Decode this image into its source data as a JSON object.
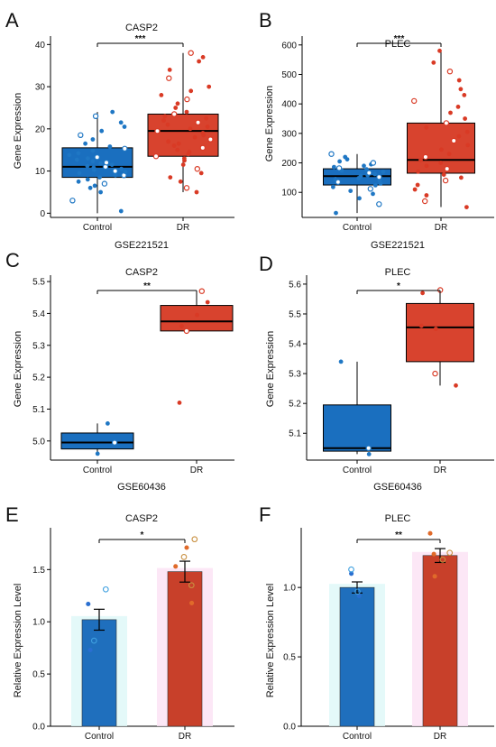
{
  "figure": {
    "panels": [
      {
        "letter": "A",
        "title": "CASP2",
        "ylabel": "Gene Expression",
        "dataset": "GSE221521"
      },
      {
        "letter": "B",
        "title": "PLEC",
        "ylabel": "Gene Expression",
        "dataset": "GSE221521"
      },
      {
        "letter": "C",
        "title": "CASP2",
        "ylabel": "Gene Expression",
        "dataset": "GSE60436"
      },
      {
        "letter": "D",
        "title": "PLEC",
        "ylabel": "Gene Expression",
        "dataset": "GSE60436"
      },
      {
        "letter": "E",
        "title": "CASP2",
        "ylabel": "Relative Expression Level",
        "dataset": ""
      },
      {
        "letter": "F",
        "title": "PLEC",
        "ylabel": "Relative Expression Level",
        "dataset": ""
      }
    ]
  },
  "colors": {
    "control": "#1f77c4",
    "control_box": "#1a6fbf",
    "dr": "#d93a25",
    "dr_box": "#d8432e",
    "bar_control_glow": "#dff8f8",
    "bar_dr_glow": "#fbe3f5",
    "bar_control": "#1f6fbd",
    "bar_dr": "#c8402a"
  },
  "chart_data": [
    {
      "type": "box",
      "title": "CASP2",
      "ylabel": "Gene Expression",
      "xlabel": "GSE221521",
      "categories": [
        "Control",
        "DR"
      ],
      "ylim": [
        -1,
        42
      ],
      "yticks": [
        0,
        10,
        20,
        30,
        40
      ],
      "ytick_labels": [
        "0",
        "10",
        "20",
        "30",
        "40"
      ],
      "boxes": [
        {
          "name": "Control",
          "q1": 8.5,
          "median": 11.0,
          "q3": 15.5,
          "whisker_low": 0.0,
          "whisker_high": 24.0
        },
        {
          "name": "DR",
          "q1": 13.5,
          "median": 19.5,
          "q3": 23.5,
          "whisker_low": 5.0,
          "whisker_high": 38.0
        }
      ],
      "points": [
        [
          0.5,
          3.0,
          5.0,
          6.0,
          6.5,
          7.0,
          7.5,
          8.0,
          8.5,
          9.0,
          9.0,
          9.5,
          9.8,
          10.0,
          10.3,
          10.5,
          10.8,
          11.0,
          11.2,
          11.5,
          11.8,
          12.0,
          12.3,
          12.7,
          13.0,
          13.3,
          13.8,
          14.2,
          14.8,
          15.3,
          15.8,
          16.5,
          17.5,
          18.5,
          19.5,
          20.5,
          21.5,
          23.0,
          24.0
        ],
        [
          5.0,
          6.0,
          7.5,
          8.5,
          9.5,
          10.5,
          11.5,
          12.5,
          13.0,
          13.5,
          14.0,
          14.5,
          15.0,
          15.5,
          16.0,
          16.5,
          17.0,
          17.5,
          18.0,
          18.5,
          19.0,
          19.5,
          20.0,
          20.5,
          21.0,
          21.5,
          22.0,
          22.5,
          23.0,
          23.5,
          24.0,
          25.0,
          26.0,
          27.0,
          28.0,
          29.0,
          30.0,
          32.0,
          34.0,
          36.0,
          37.0,
          38.0
        ]
      ],
      "significance": "***"
    },
    {
      "type": "box",
      "title": "PLEC",
      "ylabel": "Gene Expression",
      "xlabel": "GSE221521",
      "categories": [
        "Control",
        "DR"
      ],
      "ylim": [
        15,
        630
      ],
      "yticks": [
        100,
        200,
        300,
        400,
        500,
        600
      ],
      "ytick_labels": [
        "100",
        "200",
        "300",
        "400",
        "500",
        "600"
      ],
      "boxes": [
        {
          "name": "Control",
          "q1": 125,
          "median": 155,
          "q3": 180,
          "whisker_low": 30,
          "whisker_high": 230
        },
        {
          "name": "DR",
          "q1": 165,
          "median": 210,
          "q3": 335,
          "whisker_low": 50,
          "whisker_high": 580
        }
      ],
      "points": [
        [
          30,
          60,
          80,
          95,
          105,
          112,
          118,
          124,
          130,
          135,
          140,
          145,
          148,
          152,
          155,
          158,
          162,
          166,
          170,
          174,
          178,
          182,
          186,
          190,
          195,
          200,
          205,
          212,
          220,
          230
        ],
        [
          50,
          70,
          90,
          110,
          125,
          140,
          150,
          160,
          170,
          180,
          190,
          200,
          210,
          220,
          230,
          245,
          260,
          275,
          290,
          305,
          320,
          335,
          350,
          370,
          390,
          410,
          430,
          450,
          480,
          510,
          540,
          580
        ]
      ],
      "significance": "***"
    },
    {
      "type": "box",
      "title": "CASP2",
      "ylabel": "Gene Expression",
      "xlabel": "GSE60436",
      "categories": [
        "Control",
        "DR"
      ],
      "ylim": [
        4.94,
        5.52
      ],
      "yticks": [
        5.0,
        5.1,
        5.2,
        5.3,
        5.4,
        5.5
      ],
      "ytick_labels": [
        "5.0",
        "5.1",
        "5.2",
        "5.3",
        "5.4",
        "5.5"
      ],
      "boxes": [
        {
          "name": "Control",
          "q1": 4.975,
          "median": 4.995,
          "q3": 5.025,
          "whisker_low": 4.96,
          "whisker_high": 5.055
        },
        {
          "name": "DR",
          "q1": 5.345,
          "median": 5.375,
          "q3": 5.425,
          "whisker_low": 5.345,
          "whisker_high": 5.47
        }
      ],
      "points": [
        [
          4.96,
          4.995,
          5.055
        ],
        [
          5.12,
          5.345,
          5.36,
          5.395,
          5.435,
          5.47
        ]
      ],
      "significance": "**"
    },
    {
      "type": "box",
      "title": "PLEC",
      "ylabel": "Gene Expression",
      "xlabel": "GSE60436",
      "categories": [
        "Control",
        "DR"
      ],
      "ylim": [
        5.01,
        5.63
      ],
      "yticks": [
        5.1,
        5.2,
        5.3,
        5.4,
        5.5,
        5.6
      ],
      "ytick_labels": [
        "5.1",
        "5.2",
        "5.3",
        "5.4",
        "5.5",
        "5.6"
      ],
      "boxes": [
        {
          "name": "Control",
          "q1": 5.04,
          "median": 5.05,
          "q3": 5.195,
          "whisker_low": 5.03,
          "whisker_high": 5.34
        },
        {
          "name": "DR",
          "q1": 5.34,
          "median": 5.455,
          "q3": 5.535,
          "whisker_low": 5.26,
          "whisker_high": 5.58
        }
      ],
      "points": [
        [
          5.03,
          5.05,
          5.34
        ],
        [
          5.26,
          5.3,
          5.45,
          5.46,
          5.57,
          5.58
        ]
      ],
      "significance": "*"
    },
    {
      "type": "bar",
      "title": "CASP2",
      "ylabel": "Relative Expression Level",
      "categories": [
        "Control",
        "DR"
      ],
      "values": [
        1.02,
        1.48
      ],
      "errors": [
        0.1,
        0.1
      ],
      "ylim": [
        0,
        1.9
      ],
      "yticks": [
        0.0,
        0.5,
        1.0,
        1.5
      ],
      "ytick_labels": [
        "0.0",
        "0.5",
        "1.0",
        "1.5"
      ],
      "points": [
        [
          0.73,
          0.82,
          1.17,
          1.31
        ],
        [
          1.18,
          1.35,
          1.53,
          1.62,
          1.71,
          1.79
        ]
      ],
      "significance": "*"
    },
    {
      "type": "bar",
      "title": "PLEC",
      "ylabel": "Relative Expression Level",
      "categories": [
        "Control",
        "DR"
      ],
      "values": [
        1.0,
        1.23
      ],
      "errors": [
        0.04,
        0.05
      ],
      "ylim": [
        0,
        1.43
      ],
      "yticks": [
        0.0,
        0.5,
        1.0
      ],
      "ytick_labels": [
        "0.0",
        "0.5",
        "1.0"
      ],
      "points": [
        [
          0.94,
          0.97,
          1.1,
          1.13
        ],
        [
          1.08,
          1.2,
          1.24,
          1.25,
          1.39
        ]
      ],
      "significance": "**"
    }
  ]
}
